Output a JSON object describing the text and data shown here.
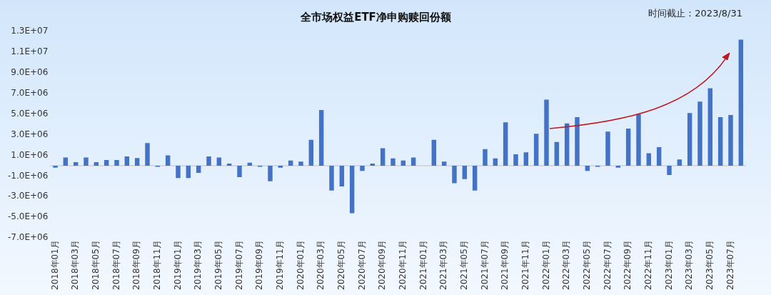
{
  "chart_data": {
    "type": "bar",
    "title": "全市场权益ETF净申购赎回份额",
    "categories": [
      "2018年01月",
      null,
      "2018年03月",
      null,
      "2018年05月",
      null,
      "2018年07月",
      null,
      "2018年09月",
      null,
      "2018年11月",
      null,
      "2019年01月",
      null,
      "2019年03月",
      null,
      "2019年05月",
      null,
      "2019年07月",
      null,
      "2019年09月",
      null,
      "2019年11月",
      null,
      "2020年01月",
      null,
      "2020年03月",
      null,
      "2020年05月",
      null,
      "2020年07月",
      null,
      "2020年09月",
      null,
      "2020年11月",
      null,
      "2021年01月",
      null,
      "2021年03月",
      null,
      "2021年05月",
      null,
      "2021年07月",
      null,
      "2021年09月",
      null,
      "2021年11月",
      null,
      "2022年01月",
      null,
      "2022年03月",
      null,
      "2022年05月",
      null,
      "2022年07月",
      null,
      "2022年09月",
      null,
      "2022年11月",
      null,
      "2023年01月",
      null,
      "2023年03月",
      null,
      "2023年05月",
      null,
      "2023年07月",
      null
    ],
    "values": [
      -200000,
      800000,
      350000,
      800000,
      350000,
      550000,
      550000,
      900000,
      750000,
      2200000,
      -100000,
      1000000,
      -1200000,
      -1200000,
      -700000,
      900000,
      800000,
      200000,
      -1100000,
      300000,
      -100000,
      -1500000,
      -200000,
      500000,
      400000,
      2500000,
      5400000,
      -2400000,
      -2000000,
      -4600000,
      -500000,
      200000,
      1700000,
      700000,
      500000,
      800000,
      0,
      2500000,
      400000,
      -1700000,
      -1300000,
      -2400000,
      1600000,
      700000,
      4200000,
      1100000,
      1300000,
      3100000,
      6400000,
      2300000,
      4100000,
      4700000,
      -500000,
      -100000,
      3300000,
      -200000,
      3600000,
      5000000,
      1200000,
      1800000,
      -900000,
      600000,
      5100000,
      6200000,
      7500000,
      4700000,
      4900000,
      12200000
    ],
    "color": "#4472c4",
    "ylim": [
      -7000000,
      13000000
    ],
    "yticks": [
      {
        "value": -7000000,
        "label": "-7.0E+06"
      },
      {
        "value": -5000000,
        "label": "-5.0E+06"
      },
      {
        "value": -3000000,
        "label": "-3.0E+06"
      },
      {
        "value": -1000000,
        "label": "-1.0E+06"
      },
      {
        "value": 1000000,
        "label": "1.0E+06"
      },
      {
        "value": 3000000,
        "label": "3.0E+06"
      },
      {
        "value": 5000000,
        "label": "5.0E+06"
      },
      {
        "value": 7000000,
        "label": "7.0E+06"
      },
      {
        "value": 9000000,
        "label": "9.0E+06"
      },
      {
        "value": 11000000,
        "label": "1.1E+07"
      },
      {
        "value": 13000000,
        "label": "1.3E+07"
      }
    ],
    "annotations": [
      "时间截止：2023/8/31"
    ]
  }
}
